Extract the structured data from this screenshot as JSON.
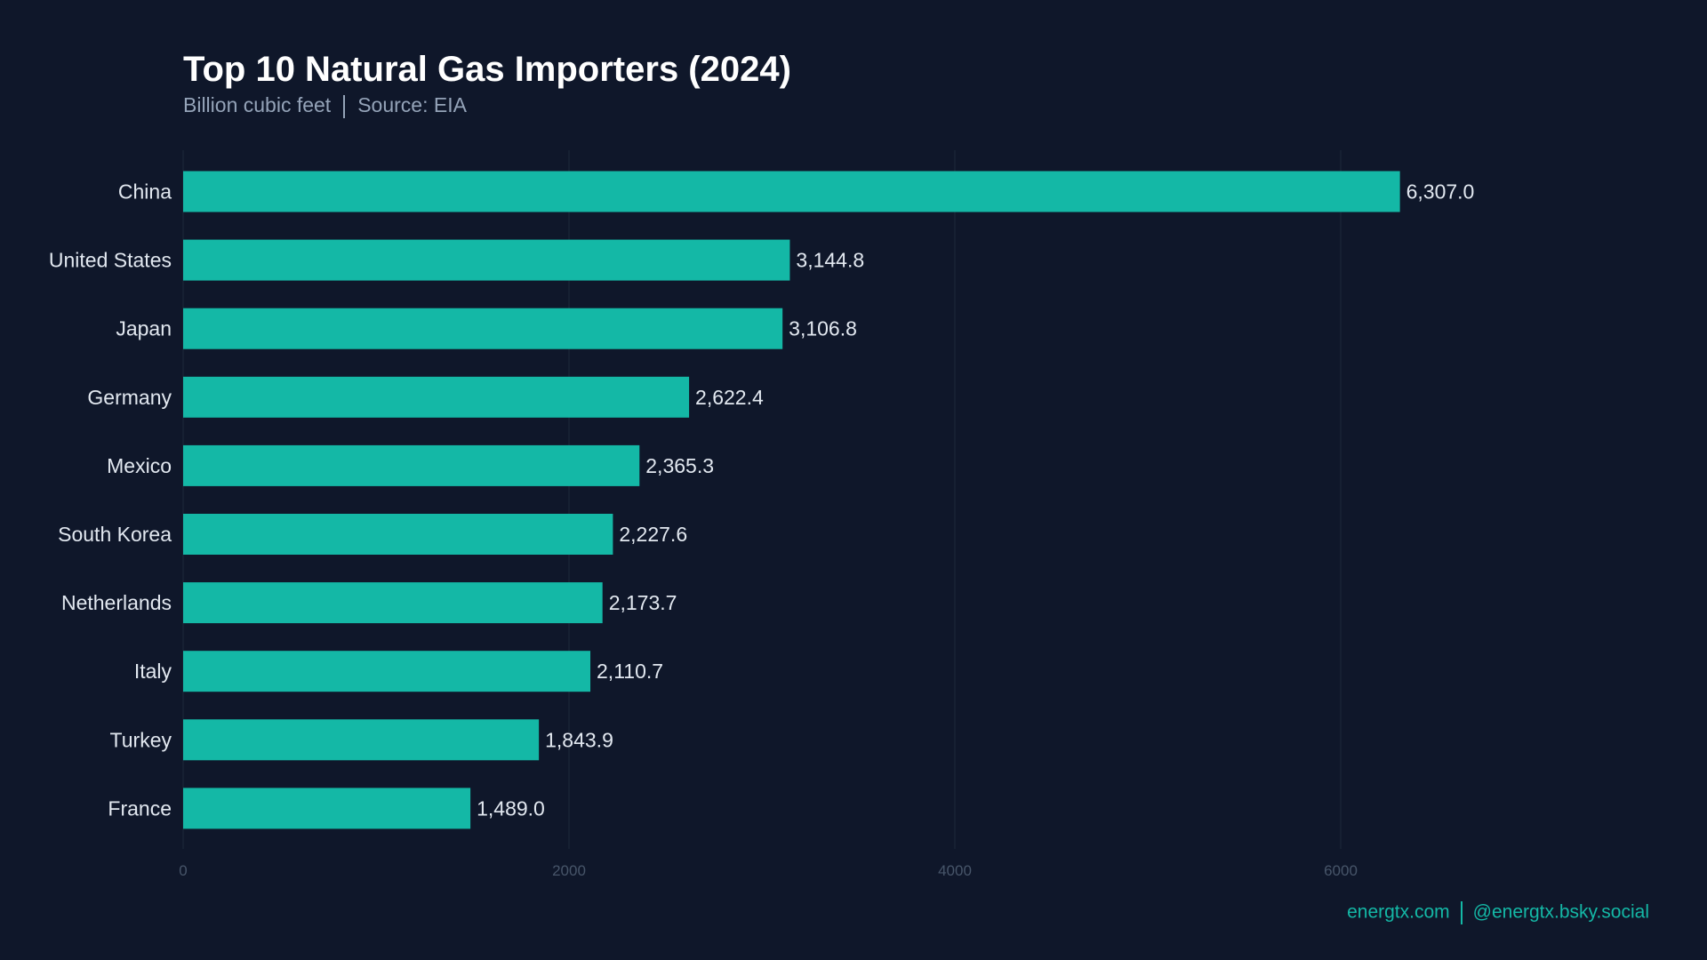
{
  "colors": {
    "background": "#0f172a",
    "bar": "#14b8a6",
    "label": "#e2e8f0",
    "subtitle": "#94a3b8",
    "tick": "#475569",
    "grid": "#1e293b",
    "footer": "#14b8a6"
  },
  "footer": {
    "site": "energtx.com",
    "social": "@energtx.bsky.social"
  },
  "chart_data": {
    "type": "bar",
    "orientation": "horizontal",
    "title": "Top 10 Natural Gas Importers (2024)",
    "subtitle_unit": "Billion cubic feet",
    "subtitle_source": "Source: EIA",
    "categories": [
      "China",
      "United States",
      "Japan",
      "Germany",
      "Mexico",
      "South Korea",
      "Netherlands",
      "Italy",
      "Turkey",
      "France"
    ],
    "values": [
      6307.0,
      3144.8,
      3106.8,
      2622.4,
      2365.3,
      2227.6,
      2173.7,
      2110.7,
      1843.9,
      1489.0
    ],
    "data_labels": [
      "6,307.0",
      "3,144.8",
      "3,106.8",
      "2,622.4",
      "2,365.3",
      "2,227.6",
      "2,173.7",
      "2,110.7",
      "1,843.9",
      "1,489.0"
    ],
    "xticks": [
      0,
      2000,
      4000,
      6000
    ],
    "xtick_labels": [
      "0",
      "2000",
      "4000",
      "6000"
    ],
    "xlim": [
      0,
      7700
    ],
    "grid": "vertical",
    "xlabel": "",
    "ylabel": ""
  }
}
